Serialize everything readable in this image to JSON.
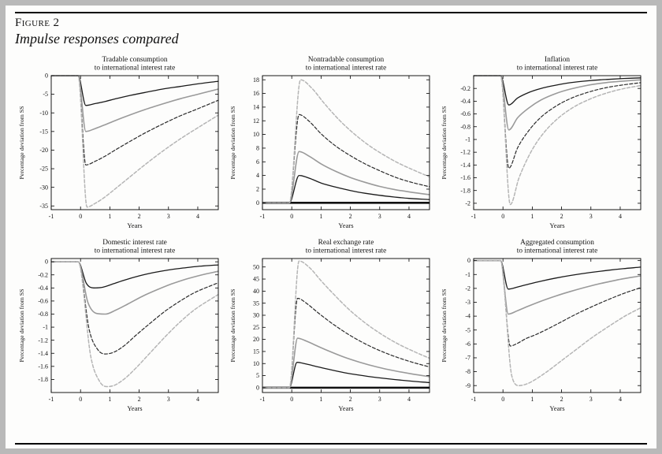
{
  "figure": {
    "label": "Figure 2",
    "title": "Impulse responses compared"
  },
  "series_styles": {
    "solid-black": {
      "color": "#1a1a1a",
      "width": 1.3,
      "dash": ""
    },
    "solid-gray": {
      "color": "#9a9a9a",
      "width": 1.6,
      "dash": ""
    },
    "dashed-black": {
      "color": "#2a2a2a",
      "width": 1.2,
      "dash": "4 2.4"
    },
    "dashed-gray": {
      "color": "#b5b5b5",
      "width": 1.5,
      "dash": "4 2.4"
    }
  },
  "chart_data": [
    {
      "type": "line",
      "title_line1": "Tradable consumption",
      "title_line2": "to international interest rate",
      "xlabel": "Years",
      "ylabel": "Percentage deviation from SS",
      "xlim": [
        -1,
        4.7
      ],
      "xticks": [
        -1,
        0,
        1,
        2,
        3,
        4
      ],
      "ylim": [
        -36,
        0
      ],
      "yticks": [
        0,
        -5,
        -10,
        -15,
        -20,
        -25,
        -30,
        -35
      ],
      "zero_line": false,
      "series": [
        {
          "name": "solid-black",
          "x": [
            -1,
            -0.08,
            0.18,
            0.5,
            0.8,
            1.2,
            1.7,
            2.2,
            2.8,
            3.4,
            4.0,
            4.7
          ],
          "y": [
            0,
            0,
            -8,
            -7.5,
            -7.0,
            -6.2,
            -5.3,
            -4.5,
            -3.6,
            -2.9,
            -2.2,
            -1.5
          ]
        },
        {
          "name": "solid-gray",
          "x": [
            -1,
            -0.08,
            0.18,
            0.5,
            0.8,
            1.2,
            1.7,
            2.2,
            2.8,
            3.4,
            4.0,
            4.7
          ],
          "y": [
            0,
            0,
            -15,
            -14.2,
            -13.3,
            -12.0,
            -10.5,
            -9.1,
            -7.6,
            -6.2,
            -5.0,
            -3.6
          ]
        },
        {
          "name": "dashed-black",
          "x": [
            -1,
            -0.08,
            0.18,
            0.5,
            0.8,
            1.2,
            1.7,
            2.2,
            2.8,
            3.4,
            4.0,
            4.7
          ],
          "y": [
            0,
            0,
            -24,
            -23,
            -21.8,
            -19.9,
            -17.6,
            -15.4,
            -13.0,
            -10.8,
            -8.9,
            -6.6
          ]
        },
        {
          "name": "dashed-gray",
          "x": [
            -1,
            -0.08,
            0.22,
            0.5,
            0.8,
            1.2,
            1.7,
            2.2,
            2.8,
            3.4,
            4.0,
            4.7
          ],
          "y": [
            0,
            0,
            -35.3,
            -34.3,
            -32.8,
            -30.3,
            -27.1,
            -23.9,
            -20.3,
            -17.0,
            -14.0,
            -10.6
          ]
        }
      ]
    },
    {
      "type": "line",
      "title_line1": "Nontradable consumption",
      "title_line2": "to international interest rate",
      "xlabel": "Years",
      "ylabel": "Percentage deviation from SS",
      "xlim": [
        -1,
        4.7
      ],
      "xticks": [
        -1,
        0,
        1,
        2,
        3,
        4
      ],
      "ylim": [
        -1,
        18.6
      ],
      "yticks": [
        0,
        2,
        4,
        6,
        8,
        10,
        12,
        14,
        16,
        18
      ],
      "zero_line": true,
      "series": [
        {
          "name": "solid-black",
          "x": [
            -1,
            -0.08,
            0.25,
            0.6,
            1.0,
            1.5,
            2.0,
            2.5,
            3.0,
            3.5,
            4.0,
            4.7
          ],
          "y": [
            0,
            0,
            4,
            3.6,
            2.9,
            2.3,
            1.8,
            1.4,
            1.1,
            0.85,
            0.65,
            0.48
          ]
        },
        {
          "name": "solid-gray",
          "x": [
            -1,
            -0.08,
            0.25,
            0.6,
            1.0,
            1.5,
            2.0,
            2.5,
            3.0,
            3.5,
            4.0,
            4.7
          ],
          "y": [
            0,
            0,
            7.5,
            6.8,
            5.7,
            4.6,
            3.7,
            3.0,
            2.4,
            1.95,
            1.6,
            1.2
          ]
        },
        {
          "name": "dashed-black",
          "x": [
            -1,
            -0.08,
            0.25,
            0.6,
            1.0,
            1.5,
            2.0,
            2.5,
            3.0,
            3.5,
            4.0,
            4.7
          ],
          "y": [
            0,
            0,
            12.9,
            11.9,
            10.1,
            8.3,
            6.9,
            5.7,
            4.7,
            3.8,
            3.1,
            2.35
          ]
        },
        {
          "name": "dashed-gray",
          "x": [
            -1,
            -0.08,
            0.3,
            0.7,
            1.1,
            1.6,
            2.1,
            2.6,
            3.1,
            3.6,
            4.1,
            4.7
          ],
          "y": [
            0,
            0,
            18,
            16.7,
            14.6,
            12.2,
            10.2,
            8.5,
            7.1,
            5.9,
            4.9,
            3.8
          ]
        }
      ]
    },
    {
      "type": "line",
      "title_line1": "Inflation",
      "title_line2": "to international interest rate",
      "xlabel": "Years",
      "ylabel": "Percentage deviation from SS",
      "xlim": [
        -1,
        4.7
      ],
      "xticks": [
        -1,
        0,
        1,
        2,
        3,
        4
      ],
      "ylim": [
        -2.1,
        0
      ],
      "yticks": [
        -0.2,
        -0.4,
        -0.6,
        -0.8,
        -1,
        -1.2,
        -1.4,
        -1.6,
        -1.8,
        -2
      ],
      "zero_line": false,
      "series": [
        {
          "name": "solid-black",
          "x": [
            -1,
            -0.08,
            0.2,
            0.5,
            0.9,
            1.3,
            1.8,
            2.3,
            2.9,
            3.5,
            4.1,
            4.7
          ],
          "y": [
            0,
            0,
            -0.46,
            -0.35,
            -0.26,
            -0.2,
            -0.15,
            -0.11,
            -0.08,
            -0.06,
            -0.045,
            -0.035
          ]
        },
        {
          "name": "solid-gray",
          "x": [
            -1,
            -0.08,
            0.2,
            0.5,
            0.9,
            1.3,
            1.8,
            2.3,
            2.9,
            3.5,
            4.1,
            4.7
          ],
          "y": [
            0,
            0,
            -0.85,
            -0.66,
            -0.5,
            -0.38,
            -0.28,
            -0.21,
            -0.15,
            -0.11,
            -0.085,
            -0.065
          ]
        },
        {
          "name": "dashed-black",
          "x": [
            -1,
            -0.08,
            0.2,
            0.5,
            0.9,
            1.3,
            1.8,
            2.3,
            2.9,
            3.5,
            4.1,
            4.7
          ],
          "y": [
            0,
            0,
            -1.45,
            -1.13,
            -0.85,
            -0.65,
            -0.48,
            -0.36,
            -0.26,
            -0.19,
            -0.145,
            -0.11
          ]
        },
        {
          "name": "dashed-gray",
          "x": [
            -1,
            -0.08,
            0.25,
            0.55,
            0.95,
            1.35,
            1.85,
            2.35,
            2.95,
            3.55,
            4.15,
            4.7
          ],
          "y": [
            0,
            0,
            -2.02,
            -1.6,
            -1.2,
            -0.92,
            -0.68,
            -0.51,
            -0.37,
            -0.27,
            -0.2,
            -0.155
          ]
        }
      ]
    },
    {
      "type": "line",
      "title_line1": "Domestic interest rate",
      "title_line2": "to international interest rate",
      "xlabel": "Years",
      "ylabel": "Percentage deviation from SS",
      "xlim": [
        -1,
        4.7
      ],
      "xticks": [
        -1,
        0,
        1,
        2,
        3,
        4
      ],
      "ylim": [
        -2.0,
        0.05
      ],
      "yticks": [
        0,
        -0.2,
        -0.4,
        -0.6,
        -0.8,
        -1,
        -1.2,
        -1.4,
        -1.6,
        -1.8
      ],
      "zero_line": false,
      "series": [
        {
          "name": "solid-black",
          "x": [
            -1,
            -0.08,
            0.2,
            0.45,
            0.75,
            1.1,
            1.5,
            2.0,
            2.5,
            3.0,
            3.5,
            4.0,
            4.7
          ],
          "y": [
            0,
            0,
            -0.33,
            -0.4,
            -0.39,
            -0.34,
            -0.28,
            -0.215,
            -0.165,
            -0.125,
            -0.095,
            -0.07,
            -0.048
          ]
        },
        {
          "name": "solid-gray",
          "x": [
            -1,
            -0.08,
            0.25,
            0.55,
            0.85,
            1.2,
            1.6,
            2.1,
            2.6,
            3.1,
            3.6,
            4.1,
            4.7
          ],
          "y": [
            0,
            0,
            -0.62,
            -0.79,
            -0.8,
            -0.74,
            -0.65,
            -0.53,
            -0.43,
            -0.34,
            -0.265,
            -0.205,
            -0.145
          ]
        },
        {
          "name": "dashed-black",
          "x": [
            -1,
            -0.08,
            0.3,
            0.6,
            0.85,
            1.15,
            1.5,
            1.9,
            2.4,
            2.9,
            3.4,
            3.9,
            4.7
          ],
          "y": [
            0,
            0,
            -1.05,
            -1.35,
            -1.41,
            -1.38,
            -1.28,
            -1.12,
            -0.93,
            -0.75,
            -0.6,
            -0.47,
            -0.32
          ]
        },
        {
          "name": "dashed-gray",
          "x": [
            -1,
            -0.08,
            0.35,
            0.65,
            0.9,
            1.15,
            1.5,
            1.9,
            2.4,
            2.9,
            3.4,
            3.9,
            4.7
          ],
          "y": [
            0,
            0,
            -1.45,
            -1.83,
            -1.91,
            -1.89,
            -1.79,
            -1.62,
            -1.38,
            -1.14,
            -0.92,
            -0.73,
            -0.5
          ]
        }
      ]
    },
    {
      "type": "line",
      "title_line1": "Real exchange rate",
      "title_line2": "to international interest rate",
      "xlabel": "Years",
      "ylabel": "Percentage deviation from SS",
      "xlim": [
        -1,
        4.7
      ],
      "xticks": [
        -1,
        0,
        1,
        2,
        3,
        4
      ],
      "ylim": [
        -2,
        53.5
      ],
      "yticks": [
        0,
        5,
        10,
        15,
        20,
        25,
        30,
        35,
        40,
        45,
        50
      ],
      "zero_line": true,
      "series": [
        {
          "name": "solid-black",
          "x": [
            -1,
            -0.08,
            0.18,
            0.5,
            0.9,
            1.3,
            1.8,
            2.3,
            2.9,
            3.5,
            4.1,
            4.7
          ],
          "y": [
            0,
            0,
            10.5,
            9.8,
            8.6,
            7.5,
            6.2,
            5.2,
            4.2,
            3.4,
            2.7,
            2.1
          ]
        },
        {
          "name": "solid-gray",
          "x": [
            -1,
            -0.08,
            0.2,
            0.5,
            0.9,
            1.3,
            1.8,
            2.3,
            2.9,
            3.5,
            4.1,
            4.7
          ],
          "y": [
            0,
            0,
            20.5,
            19.3,
            17.1,
            15.0,
            12.6,
            10.6,
            8.6,
            7.0,
            5.7,
            4.6
          ]
        },
        {
          "name": "dashed-black",
          "x": [
            -1,
            -0.08,
            0.2,
            0.5,
            0.9,
            1.3,
            1.8,
            2.3,
            2.9,
            3.5,
            4.1,
            4.7
          ],
          "y": [
            0,
            0,
            37,
            35,
            31,
            27.3,
            23.1,
            19.5,
            15.9,
            13.0,
            10.6,
            8.6
          ]
        },
        {
          "name": "dashed-gray",
          "x": [
            -1,
            -0.08,
            0.25,
            0.6,
            1.0,
            1.4,
            1.9,
            2.4,
            3.0,
            3.6,
            4.2,
            4.7
          ],
          "y": [
            0,
            0,
            52.5,
            49.8,
            44.3,
            39.1,
            33.0,
            27.8,
            22.6,
            18.3,
            14.8,
            12.2
          ]
        }
      ]
    },
    {
      "type": "line",
      "title_line1": "Aggregated consumption",
      "title_line2": "to international interest rate",
      "xlabel": "Years",
      "ylabel": "Percentage deviation from SS",
      "xlim": [
        -1,
        4.7
      ],
      "xticks": [
        -1,
        0,
        1,
        2,
        3,
        4
      ],
      "ylim": [
        -9.5,
        0.15
      ],
      "yticks": [
        0,
        -1,
        -2,
        -3,
        -4,
        -5,
        -6,
        -7,
        -8,
        -9
      ],
      "zero_line": false,
      "series": [
        {
          "name": "solid-black",
          "x": [
            -1,
            -0.08,
            0.18,
            0.5,
            0.9,
            1.3,
            1.8,
            2.3,
            2.9,
            3.5,
            4.1,
            4.7
          ],
          "y": [
            0,
            0,
            -2.05,
            -1.9,
            -1.68,
            -1.48,
            -1.26,
            -1.07,
            -0.88,
            -0.72,
            -0.58,
            -0.47
          ]
        },
        {
          "name": "solid-gray",
          "x": [
            -1,
            -0.08,
            0.18,
            0.5,
            0.9,
            1.3,
            1.8,
            2.3,
            2.9,
            3.5,
            4.1,
            4.7
          ],
          "y": [
            0,
            0,
            -3.85,
            -3.6,
            -3.25,
            -2.92,
            -2.55,
            -2.22,
            -1.87,
            -1.57,
            -1.31,
            -1.1
          ]
        },
        {
          "name": "dashed-black",
          "x": [
            -1,
            -0.08,
            0.25,
            0.5,
            0.8,
            1.1,
            1.5,
            2.0,
            2.5,
            3.0,
            3.6,
            4.2,
            4.7
          ],
          "y": [
            0,
            0,
            -6.15,
            -5.95,
            -5.6,
            -5.35,
            -4.95,
            -4.4,
            -3.85,
            -3.35,
            -2.8,
            -2.3,
            -1.95
          ]
        },
        {
          "name": "dashed-gray",
          "x": [
            -1,
            -0.08,
            0.3,
            0.55,
            0.85,
            1.15,
            1.5,
            2.0,
            2.5,
            3.0,
            3.6,
            4.2,
            4.7
          ],
          "y": [
            0,
            0,
            -8.3,
            -9.0,
            -8.85,
            -8.5,
            -8.0,
            -7.2,
            -6.4,
            -5.6,
            -4.75,
            -3.95,
            -3.4
          ]
        }
      ]
    }
  ]
}
